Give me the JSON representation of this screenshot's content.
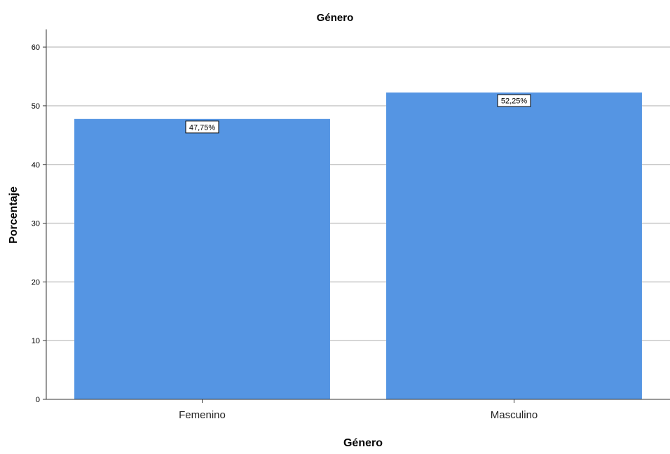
{
  "chart_data": {
    "type": "bar",
    "title": "Género",
    "xlabel": "Género",
    "ylabel": "Porcentaje",
    "categories": [
      "Femenino",
      "Masculino"
    ],
    "values": [
      47.75,
      52.25
    ],
    "data_labels": [
      "47,75%",
      "52,25%"
    ],
    "ylim": [
      0,
      63
    ],
    "yticks": [
      0,
      10,
      20,
      30,
      40,
      50,
      60
    ],
    "grid": true,
    "legend": "none",
    "bar_color": "#5595e3",
    "grid_color": "#c8c8c8"
  }
}
